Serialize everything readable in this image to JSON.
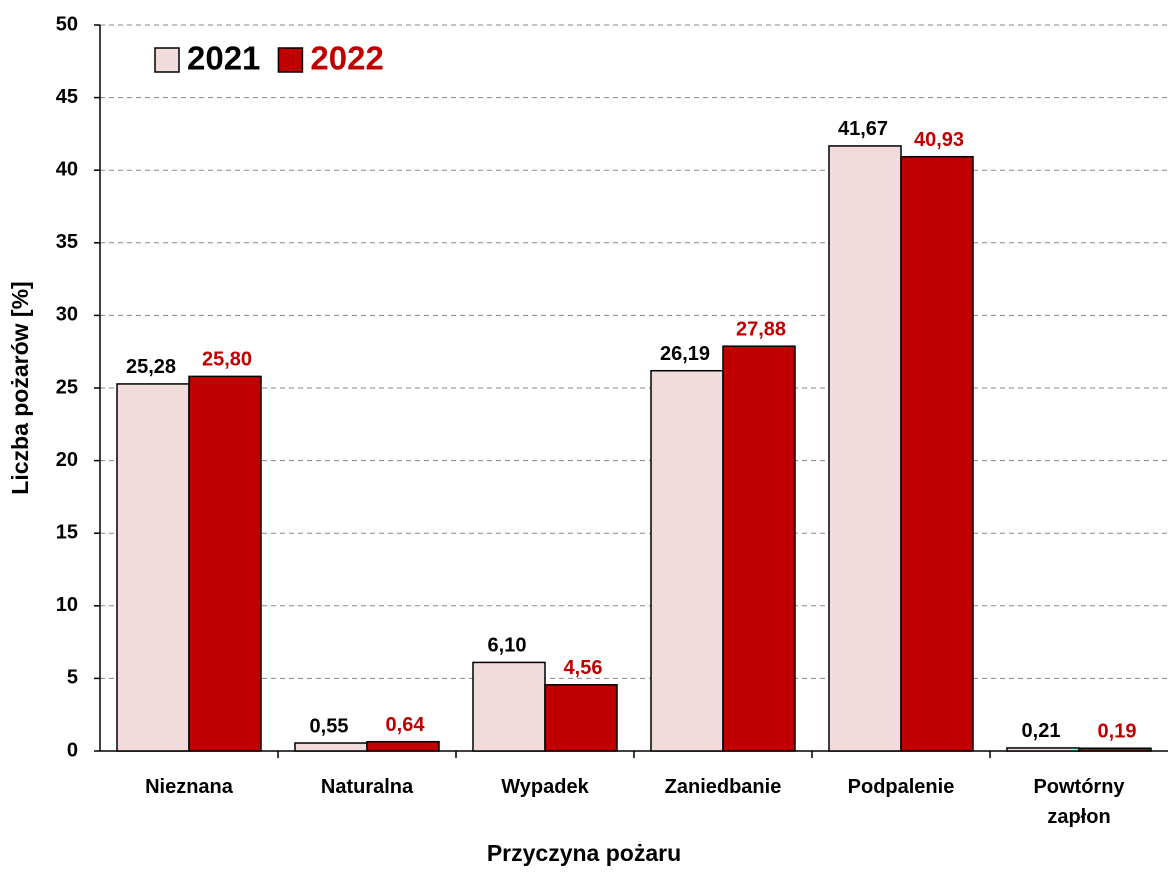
{
  "chart_data": {
    "type": "bar",
    "x_label": "Przyczyna pożaru",
    "y_label": "Liczba pożarów [%]",
    "categories": [
      "Nieznana",
      "Naturalna",
      "Wypadek",
      "Zaniedbanie",
      "Podpalenie",
      "Powtórny\nzapłon"
    ],
    "series": [
      {
        "name": "2021",
        "color": "#f2dcdb",
        "values": [
          25.28,
          0.55,
          6.1,
          26.19,
          41.67,
          0.21
        ],
        "value_labels": [
          "25,28",
          "0,55",
          "6,10",
          "26,19",
          "41,67",
          "0,21"
        ]
      },
      {
        "name": "2022",
        "color": "#c00000",
        "values": [
          25.8,
          0.64,
          4.56,
          27.88,
          40.93,
          0.19
        ],
        "value_labels": [
          "25,80",
          "0,64",
          "4,56",
          "27,88",
          "40,93",
          "0,19"
        ]
      }
    ],
    "ylim": [
      0,
      50
    ],
    "yticks": [
      0,
      5,
      10,
      15,
      20,
      25,
      30,
      35,
      40,
      45,
      50
    ],
    "grid": true,
    "legend": "top-left"
  }
}
